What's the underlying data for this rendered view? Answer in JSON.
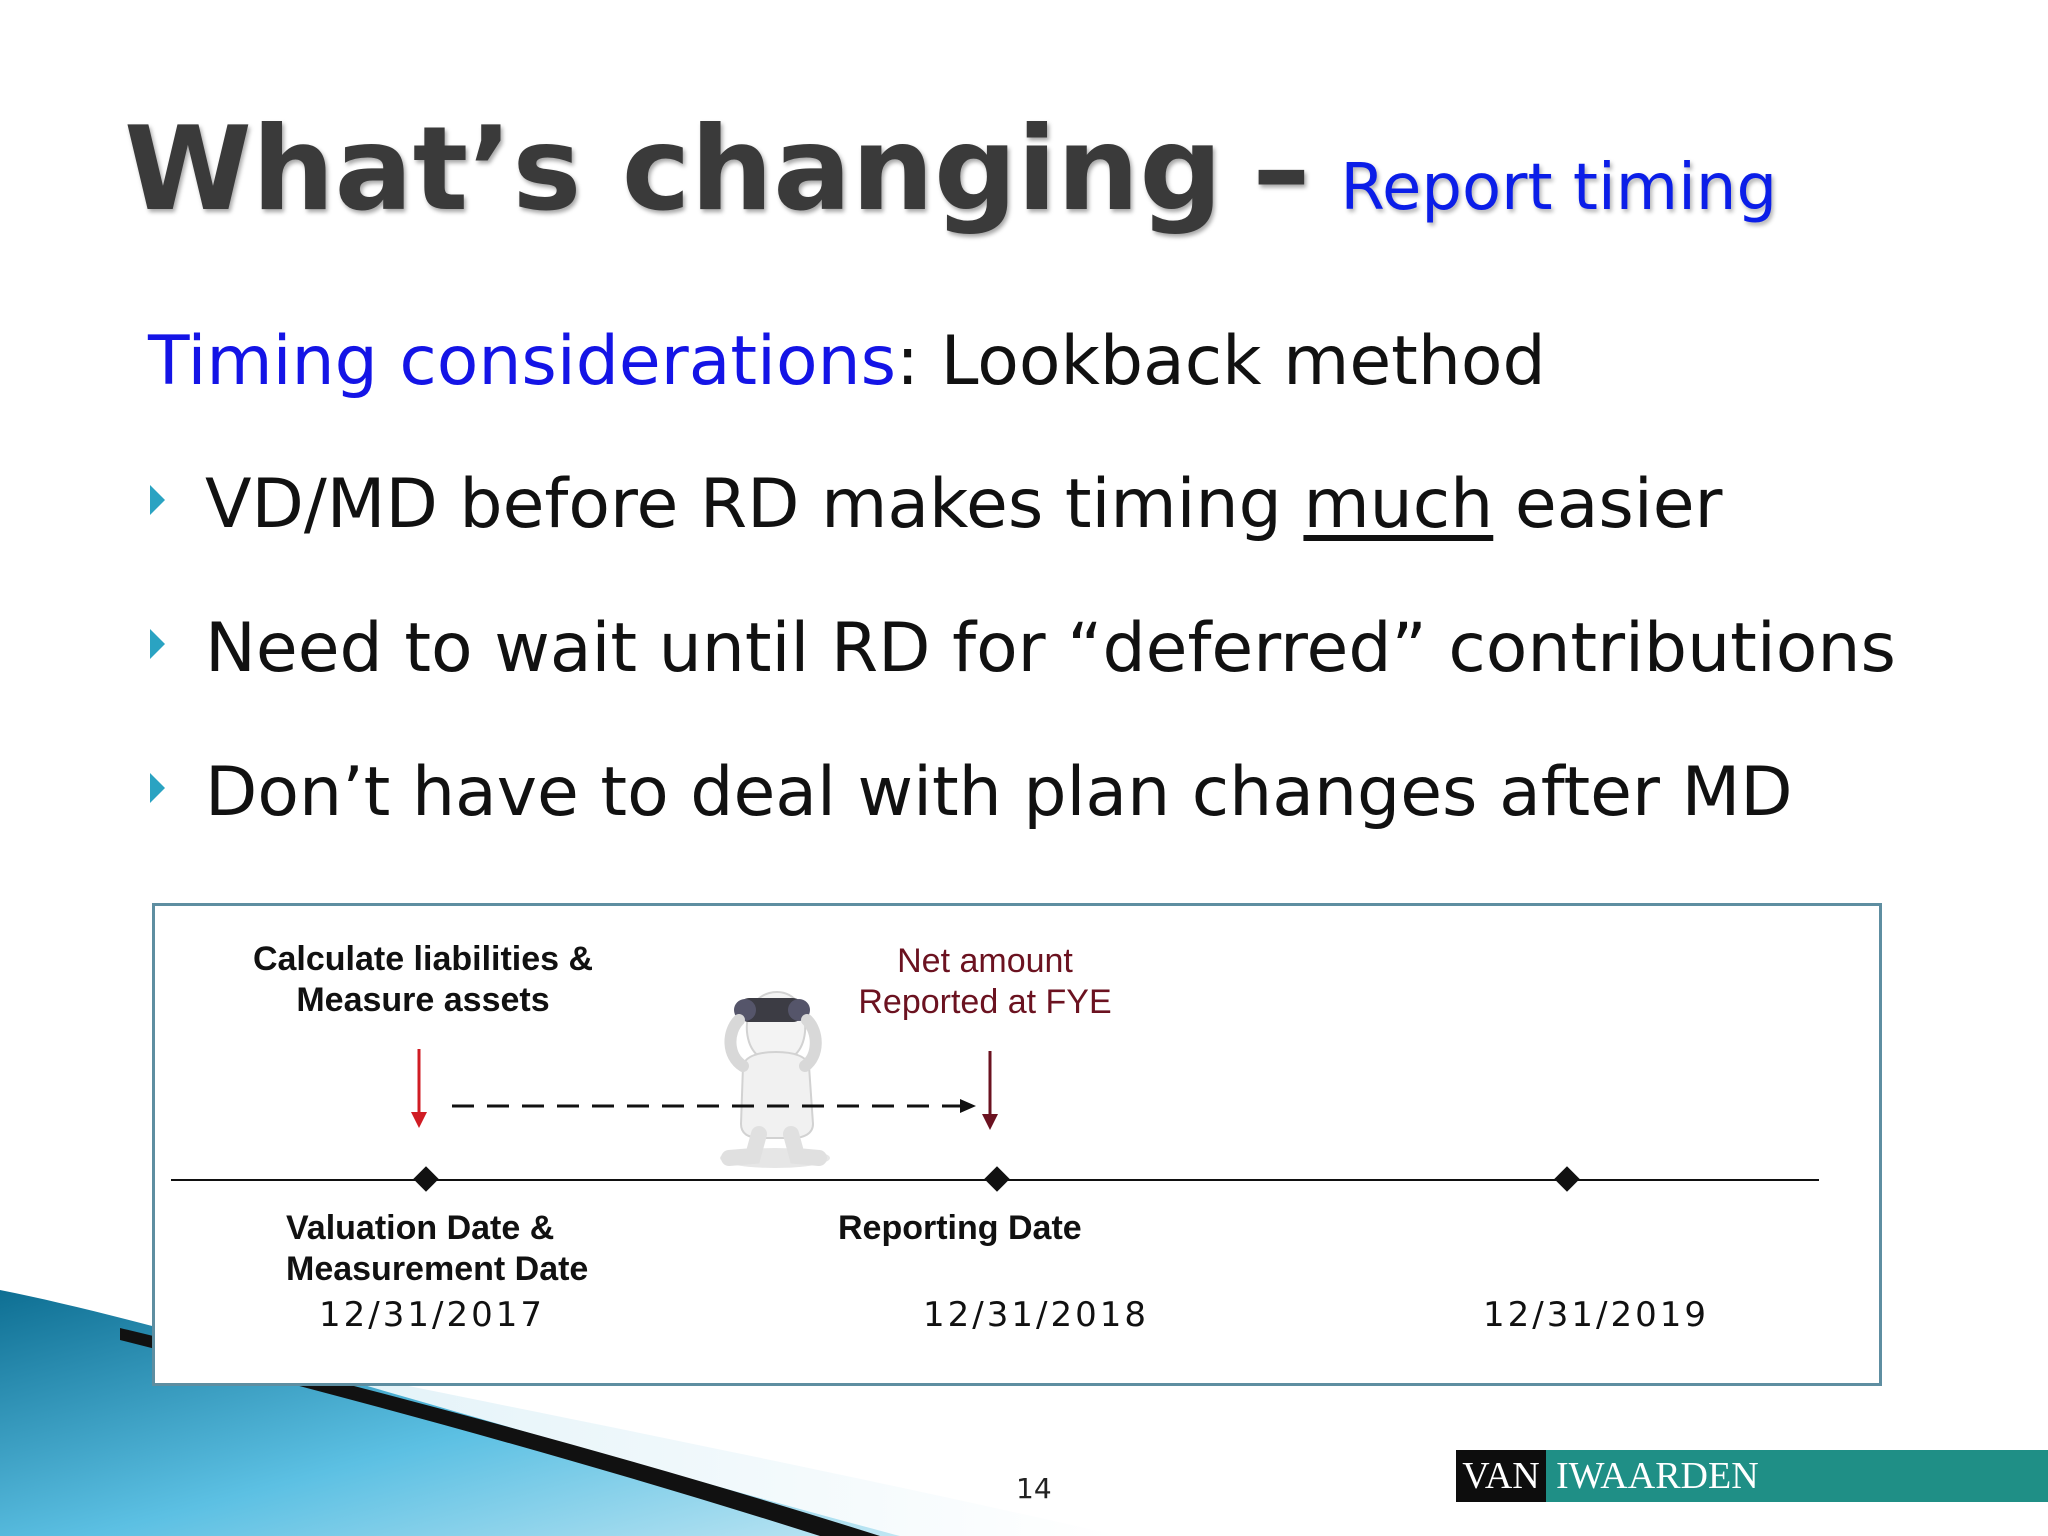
{
  "title": {
    "main": "What’s changing",
    "separator": "–",
    "sub": "Report timing"
  },
  "subheading": {
    "highlight": "Timing considerations",
    "rest": ": Lookback method"
  },
  "bullets": [
    {
      "before": "VD/MD before RD makes timing ",
      "emphasis": "much",
      "after": " easier"
    },
    {
      "text": "Need to wait until RD for “deferred” contributions"
    },
    {
      "text": "Don’t have to deal with plan changes after MD"
    }
  ],
  "diagram": {
    "top_left_label": [
      "Calculate liabilities &",
      "Measure assets"
    ],
    "top_right_label": [
      "Net amount",
      "Reported at FYE"
    ],
    "milestones": [
      {
        "label": [
          "Valuation Date &",
          "Measurement Date"
        ],
        "date": "12/31/2017"
      },
      {
        "label": [
          "Reporting Date"
        ],
        "date": "12/31/2018"
      },
      {
        "label": [],
        "date": "12/31/2019"
      }
    ],
    "colors": {
      "arrow": "#d01c24",
      "net_amount_text": "#6b1220",
      "frame": "#5e8ea1"
    },
    "figure_icon": "person-with-binoculars-icon"
  },
  "footer": {
    "page_number": "14",
    "logo_van": "VAN",
    "logo_name": "IWAARDEN"
  }
}
